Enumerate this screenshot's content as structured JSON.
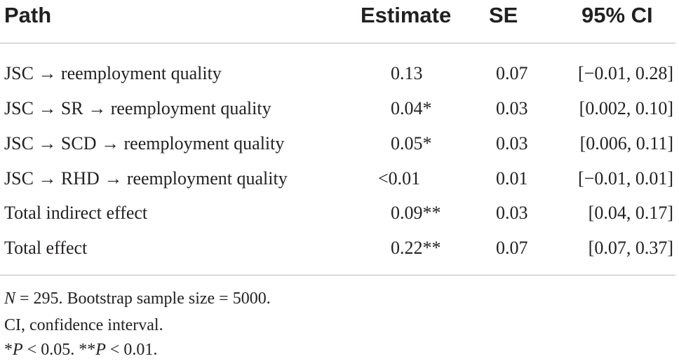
{
  "table": {
    "headers": {
      "path": "Path",
      "estimate": "Estimate",
      "se": "SE",
      "ci": "95% CI"
    },
    "rows": [
      {
        "path": "JSC → reemployment quality",
        "estimate": "0.13",
        "se": "0.07",
        "ci": "[−0.01, 0.28]"
      },
      {
        "path": "JSC → SR → reemployment quality",
        "estimate": "0.04*",
        "se": "0.03",
        "ci": "[0.002, 0.10]"
      },
      {
        "path": "JSC → SCD → reemployment quality",
        "estimate": "0.05*",
        "se": "0.03",
        "ci": "[0.006, 0.11]"
      },
      {
        "path": "JSC → RHD → reemployment quality",
        "estimate": "<0.01",
        "se": "0.01",
        "ci": "[−0.01, 0.01]"
      },
      {
        "path": "Total indirect effect",
        "estimate": "0.09**",
        "se": "0.03",
        "ci": "[0.04, 0.17]"
      },
      {
        "path": "Total effect",
        "estimate": "0.22**",
        "se": "0.07",
        "ci": "[0.07, 0.37]"
      }
    ]
  },
  "notes": {
    "line1": {
      "n_label": "N",
      "n_text": " = 295. Bootstrap sample size = 5000."
    },
    "line2": "CI, confidence interval.",
    "line3": {
      "star1": "*",
      "p1_label": "P",
      "p1_text": " < 0.05. ",
      "star2": "**",
      "p2_label": "P",
      "p2_text": " < 0.01."
    }
  }
}
